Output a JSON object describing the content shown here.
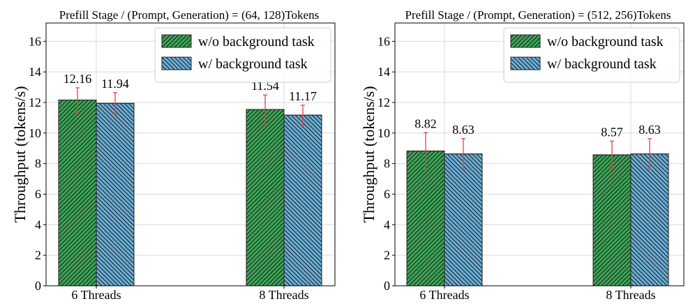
{
  "chart_data": [
    {
      "type": "bar",
      "title": "Prefill Stage / (Prompt, Generation) = (64, 128)Tokens",
      "xlabel": "",
      "ylabel": "Throughput (tokens/s)",
      "ylim": [
        0,
        17.2
      ],
      "yticks": [
        0,
        2,
        4,
        6,
        8,
        10,
        12,
        14,
        16
      ],
      "grid": true,
      "legend_position": "top-right",
      "categories": [
        "6 Threads",
        "8 Threads"
      ],
      "series": [
        {
          "name": "w/o background task",
          "color": "#3aa655",
          "values": [
            12.16,
            11.54
          ],
          "labels": [
            "12.16",
            "11.54"
          ],
          "errors": [
            0.8,
            0.95
          ]
        },
        {
          "name": "w/ background task",
          "color": "#6aaed6",
          "values": [
            11.94,
            11.17
          ],
          "labels": [
            "11.94",
            "11.17"
          ],
          "errors": [
            0.7,
            0.65
          ]
        }
      ]
    },
    {
      "type": "bar",
      "title": "Prefill Stage / (Prompt, Generation) = (512, 256)Tokens",
      "xlabel": "",
      "ylabel": "Throughput (tokens/s)",
      "ylim": [
        0,
        17.2
      ],
      "yticks": [
        0,
        2,
        4,
        6,
        8,
        10,
        12,
        14,
        16
      ],
      "grid": true,
      "legend_position": "top-right",
      "categories": [
        "6 Threads",
        "8 Threads"
      ],
      "series": [
        {
          "name": "w/o background task",
          "color": "#3aa655",
          "values": [
            8.82,
            8.57
          ],
          "labels": [
            "8.82",
            "8.57"
          ],
          "errors": [
            1.2,
            0.9
          ]
        },
        {
          "name": "w/ background task",
          "color": "#6aaed6",
          "values": [
            8.63,
            8.63
          ],
          "labels": [
            "8.63",
            "8.63"
          ],
          "errors": [
            1.0,
            1.0
          ]
        }
      ]
    }
  ]
}
